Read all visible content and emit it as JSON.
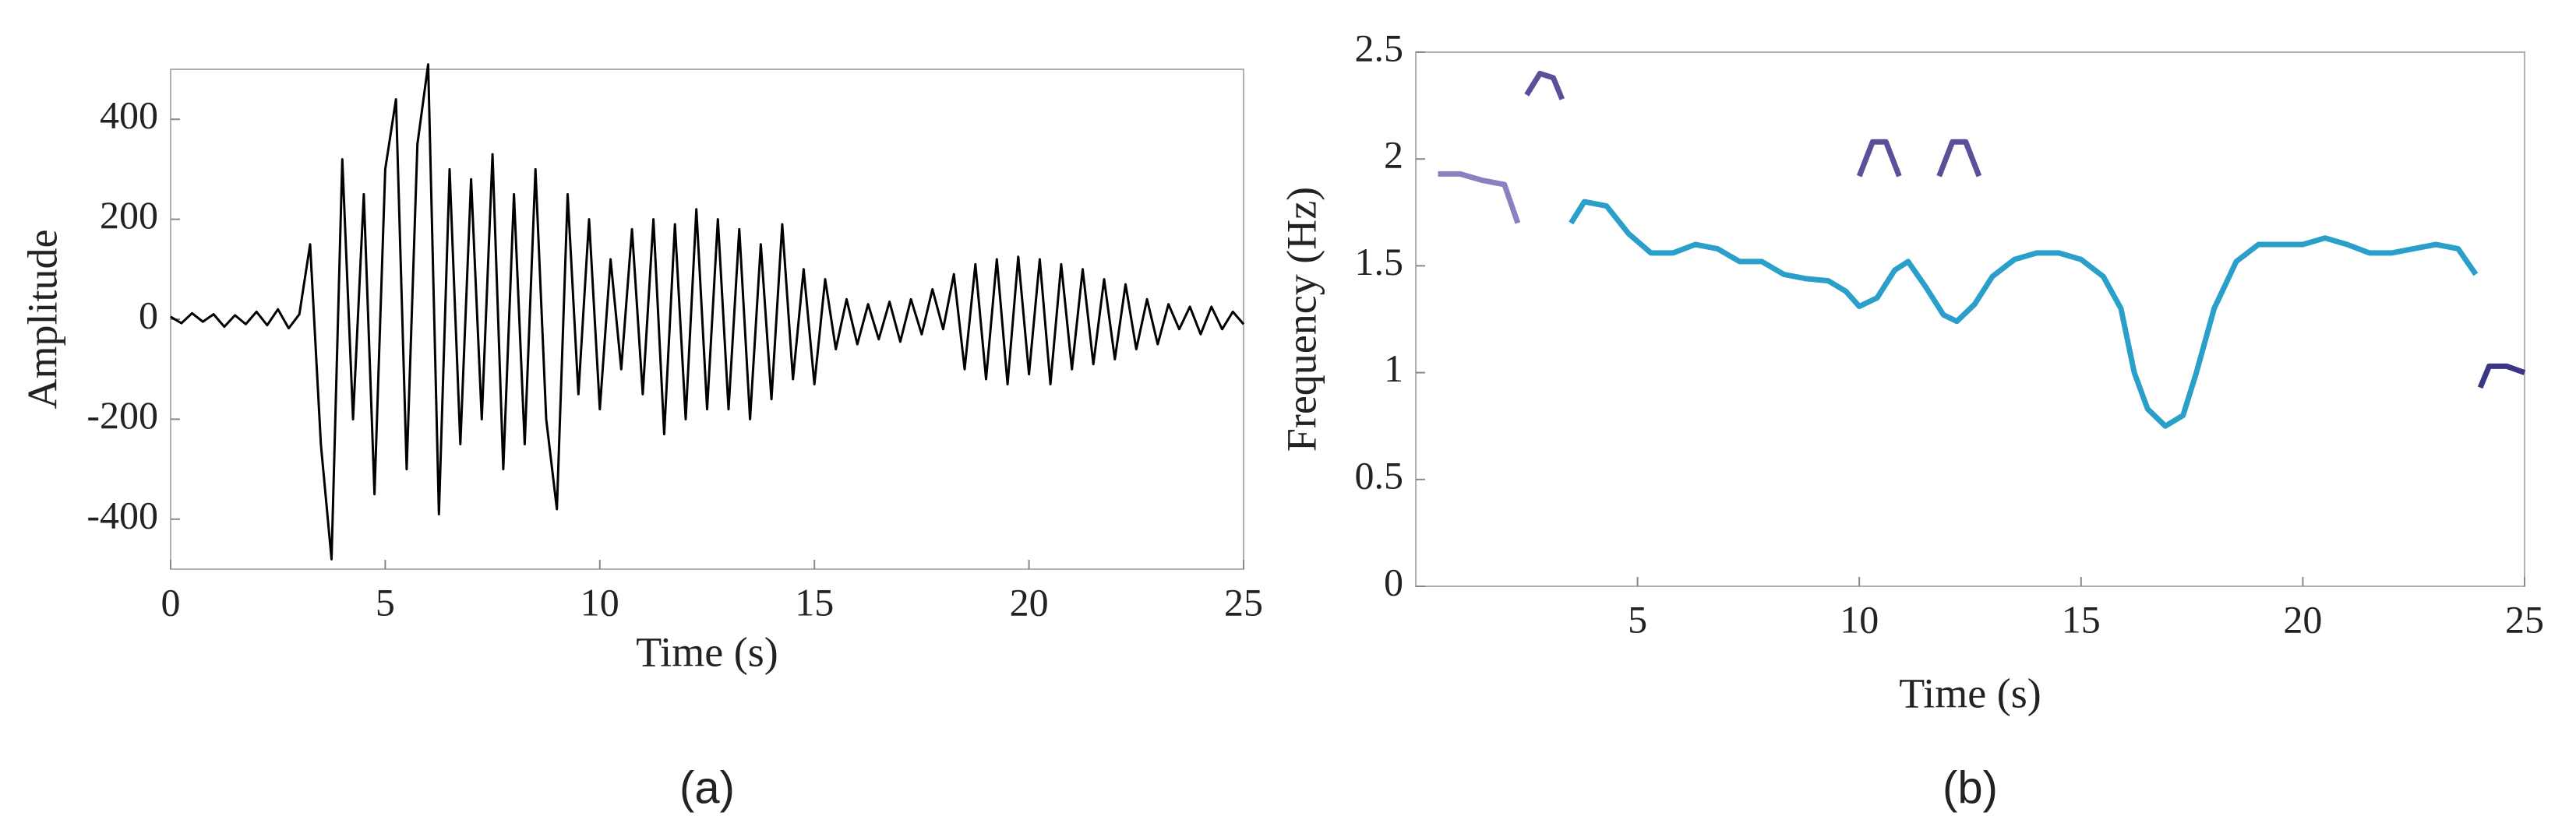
{
  "chart_data": [
    {
      "type": "line",
      "xlabel": "Time (s)",
      "ylabel": "Amplitude",
      "caption": "(a)",
      "x": [
        0,
        0.25,
        0.5,
        0.75,
        1,
        1.25,
        1.5,
        1.75,
        2,
        2.25,
        2.5,
        2.75,
        3,
        3.25,
        3.5,
        3.75,
        4,
        4.25,
        4.5,
        4.75,
        5,
        5.25,
        5.5,
        5.75,
        6,
        6.25,
        6.5,
        6.75,
        7,
        7.25,
        7.5,
        7.75,
        8,
        8.25,
        8.5,
        8.75,
        9,
        9.25,
        9.5,
        9.75,
        10,
        10.25,
        10.5,
        10.75,
        11,
        11.25,
        11.5,
        11.75,
        12,
        12.25,
        12.5,
        12.75,
        13,
        13.25,
        13.5,
        13.75,
        14,
        14.25,
        14.5,
        14.75,
        15,
        15.25,
        15.5,
        15.75,
        16,
        16.25,
        16.5,
        16.75,
        17,
        17.25,
        17.5,
        17.75,
        18,
        18.25,
        18.5,
        18.75,
        19,
        19.25,
        19.5,
        19.75,
        20,
        20.25,
        20.5,
        20.75,
        21,
        21.25,
        21.5,
        21.75,
        22,
        22.25,
        22.5,
        22.75,
        23,
        23.25,
        23.5,
        23.75,
        24,
        24.25,
        24.5,
        24.75,
        25
      ],
      "values": [
        5,
        -8,
        12,
        -5,
        10,
        -15,
        8,
        -10,
        15,
        -12,
        20,
        -18,
        10,
        150,
        -250,
        -480,
        320,
        -200,
        250,
        -350,
        300,
        440,
        -300,
        350,
        510,
        -390,
        300,
        -250,
        280,
        -200,
        330,
        -300,
        250,
        -250,
        300,
        -200,
        -380,
        250,
        -150,
        200,
        -180,
        120,
        -100,
        180,
        -150,
        200,
        -230,
        190,
        -200,
        220,
        -180,
        200,
        -180,
        180,
        -200,
        150,
        -160,
        190,
        -120,
        100,
        -130,
        80,
        -60,
        40,
        -50,
        30,
        -40,
        35,
        -45,
        40,
        -30,
        60,
        -20,
        90,
        -100,
        110,
        -120,
        120,
        -130,
        125,
        -110,
        120,
        -130,
        110,
        -100,
        100,
        -90,
        80,
        -80,
        70,
        -60,
        40,
        -50,
        30,
        -20,
        25,
        -30,
        25,
        -20,
        15,
        -10
      ],
      "color": "#000000",
      "xlim": [
        0,
        25
      ],
      "xticks": [
        0,
        5,
        10,
        15,
        20,
        25
      ],
      "ylim": [
        -500,
        500
      ],
      "yticks": [
        -400,
        -200,
        0,
        200,
        400
      ]
    },
    {
      "type": "line",
      "xlabel": "Time (s)",
      "ylabel": "Frequency (Hz)",
      "caption": "(b)",
      "series": [
        {
          "color": "#8a82c0",
          "x": [
            0.5,
            1,
            1.5,
            2,
            2.3
          ],
          "values": [
            1.93,
            1.93,
            1.9,
            1.88,
            1.7
          ]
        },
        {
          "color": "#5b4f9a",
          "x": [
            2.5,
            2.8,
            3.1,
            3.3
          ],
          "values": [
            2.3,
            2.4,
            2.38,
            2.28
          ]
        },
        {
          "color": "#5b4f9a",
          "x": [
            10,
            10.3,
            10.6,
            10.9
          ],
          "values": [
            1.92,
            2.08,
            2.08,
            1.92
          ]
        },
        {
          "color": "#5b4f9a",
          "x": [
            11.8,
            12.1,
            12.4,
            12.7
          ],
          "values": [
            1.92,
            2.08,
            2.08,
            1.92
          ]
        },
        {
          "color": "#2a9fc9",
          "x": [
            3.5,
            3.8,
            4.3,
            4.8,
            5.3,
            5.8,
            6.3,
            6.8,
            7.3,
            7.8,
            8.3,
            8.8,
            9.3,
            9.7,
            10,
            10.4,
            10.8,
            11.1,
            11.5,
            11.9,
            12.2,
            12.6,
            13,
            13.5,
            14,
            14.5,
            15,
            15.5,
            15.9,
            16.2,
            16.5,
            16.9,
            17.3,
            17.6,
            18,
            18.5,
            19,
            19.5,
            20,
            20.5,
            21,
            21.5,
            22,
            22.5,
            23,
            23.5,
            23.9
          ],
          "values": [
            1.7,
            1.8,
            1.78,
            1.65,
            1.56,
            1.56,
            1.6,
            1.58,
            1.52,
            1.52,
            1.46,
            1.44,
            1.43,
            1.38,
            1.31,
            1.35,
            1.48,
            1.52,
            1.4,
            1.27,
            1.24,
            1.32,
            1.45,
            1.53,
            1.56,
            1.56,
            1.53,
            1.45,
            1.3,
            1.0,
            0.83,
            0.75,
            0.8,
            1.0,
            1.3,
            1.52,
            1.6,
            1.6,
            1.6,
            1.63,
            1.6,
            1.56,
            1.56,
            1.58,
            1.6,
            1.58,
            1.46
          ]
        },
        {
          "color": "#3b3585",
          "x": [
            24,
            24.2,
            24.6,
            25
          ],
          "values": [
            0.93,
            1.03,
            1.03,
            1.0
          ]
        }
      ],
      "xlim": [
        0,
        25
      ],
      "xticks": [
        5,
        10,
        15,
        20,
        25
      ],
      "ylim": [
        0,
        2.5
      ],
      "yticks": [
        0,
        0.5,
        1,
        1.5,
        2,
        2.5
      ]
    }
  ]
}
